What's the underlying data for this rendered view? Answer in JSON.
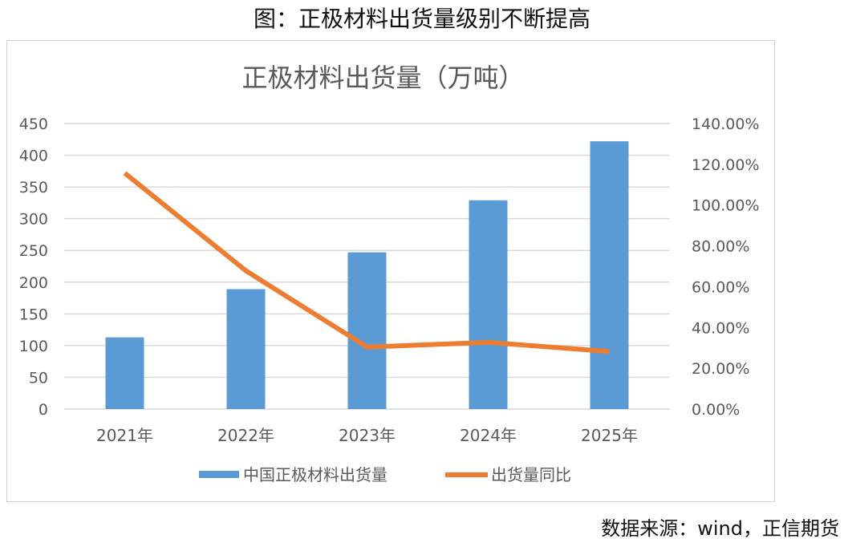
{
  "figure_title": "图：正极材料出货量级别不断提高",
  "source": "数据来源：wind，正信期货",
  "chart_data": {
    "type": "bar",
    "title": "正极材料出货量（万吨）",
    "categories": [
      "2021年",
      "2022年",
      "2023年",
      "2024年",
      "2025年"
    ],
    "series": [
      {
        "name": "中国正极材料出货量",
        "type": "bar",
        "axis": "left",
        "color": "#5b9bd5",
        "values": [
          113,
          189,
          247,
          329,
          422
        ]
      },
      {
        "name": "出货量同比",
        "type": "line",
        "axis": "right",
        "color": "#ed7d31",
        "values": [
          115.7,
          67.8,
          30.4,
          32.7,
          28.2
        ]
      }
    ],
    "left_axis": {
      "ylim": [
        0,
        450
      ],
      "ticks": [
        "0",
        "50",
        "100",
        "150",
        "200",
        "250",
        "300",
        "350",
        "400",
        "450"
      ]
    },
    "right_axis": {
      "ylim": [
        0,
        140
      ],
      "ticks": [
        "0.00%",
        "20.00%",
        "40.00%",
        "60.00%",
        "80.00%",
        "100.00%",
        "120.00%",
        "140.00%"
      ]
    },
    "grid": true,
    "legend": "bottom"
  }
}
